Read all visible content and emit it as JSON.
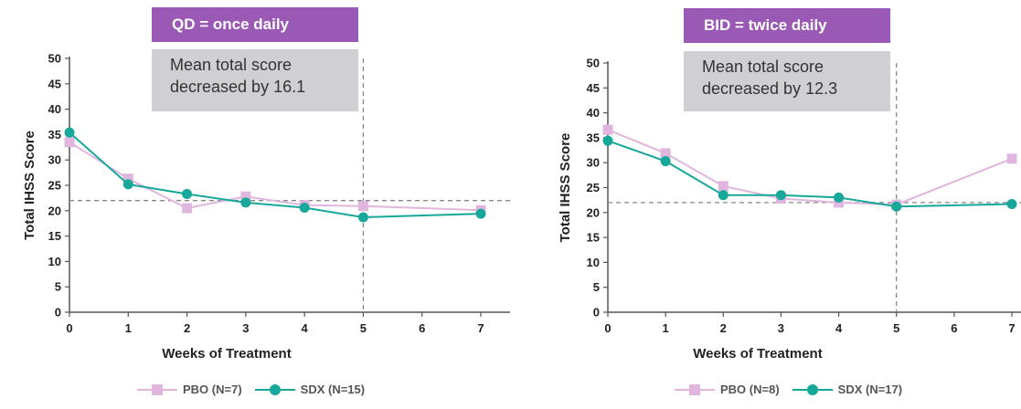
{
  "colors": {
    "pbo": "#e0b6de",
    "sdx": "#17a89a",
    "badge": "#9b59b6",
    "note": "#d0cfd3",
    "reference": "#888888"
  },
  "chart_data": [
    {
      "type": "line",
      "badge": "QD = once daily",
      "annotation_lines": [
        "Mean total score",
        "decreased by 16.1"
      ],
      "xlabel": "Weeks of Treatment",
      "ylabel": "Total IHSS Score",
      "ylim": [
        0,
        50
      ],
      "yticks": [
        0,
        5,
        10,
        15,
        20,
        25,
        30,
        35,
        40,
        45,
        50
      ],
      "xlim": [
        0,
        7
      ],
      "xticks": [
        0,
        1,
        2,
        3,
        4,
        5,
        6,
        7
      ],
      "reference_y": 22,
      "reference_x": 5,
      "series": [
        {
          "name": "PBO (N=7)",
          "marker": "square",
          "x": [
            0,
            1,
            2,
            3,
            4,
            5,
            7
          ],
          "y": [
            33.5,
            26.3,
            20.5,
            22.8,
            21.1,
            20.9,
            20.1
          ]
        },
        {
          "name": "SDX (N=15)",
          "marker": "circle",
          "x": [
            0,
            1,
            2,
            3,
            4,
            5,
            7
          ],
          "y": [
            35.4,
            25.2,
            23.3,
            21.6,
            20.6,
            18.7,
            19.4
          ]
        }
      ]
    },
    {
      "type": "line",
      "badge": "BID = twice daily",
      "annotation_lines": [
        "Mean total score",
        "decreased by 12.3"
      ],
      "xlabel": "Weeks of Treatment",
      "ylabel": "Total IHSS Score",
      "ylim": [
        0,
        50
      ],
      "yticks": [
        0,
        5,
        10,
        15,
        20,
        25,
        30,
        35,
        40,
        45,
        50
      ],
      "xlim": [
        0,
        7
      ],
      "xticks": [
        0,
        1,
        2,
        3,
        4,
        5,
        6,
        7
      ],
      "reference_y": 22,
      "reference_x": 5,
      "series": [
        {
          "name": "PBO (N=8)",
          "marker": "square",
          "x": [
            0,
            1,
            2,
            3,
            4,
            5,
            7
          ],
          "y": [
            36.6,
            31.9,
            25.3,
            22.8,
            22.0,
            21.6,
            30.8
          ]
        },
        {
          "name": "SDX (N=17)",
          "marker": "circle",
          "x": [
            0,
            1,
            2,
            3,
            4,
            5,
            7
          ],
          "y": [
            34.4,
            30.3,
            23.5,
            23.5,
            23.0,
            21.2,
            21.7
          ]
        }
      ]
    }
  ]
}
